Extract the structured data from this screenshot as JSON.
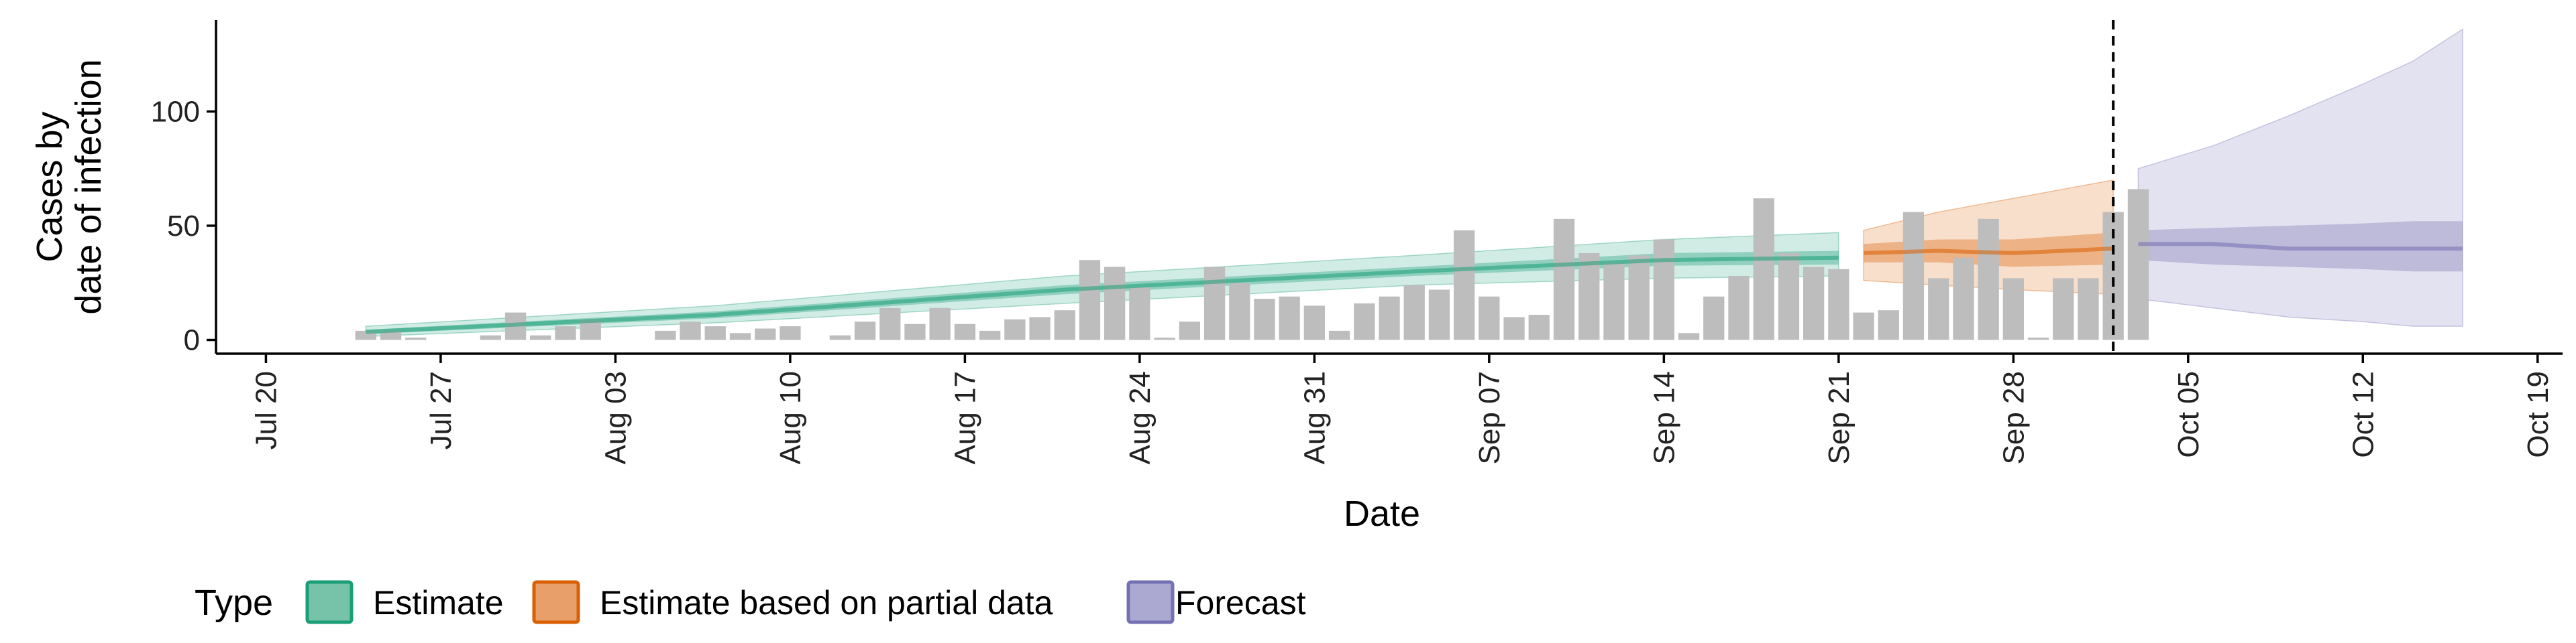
{
  "chart_data": {
    "type": "bar",
    "xlabel": "Date",
    "ylabel_line1": "Cases by",
    "ylabel_line2": "date of infection",
    "x_range": [
      "2020-07-18",
      "2020-10-20"
    ],
    "ylim": [
      -6,
      140
    ],
    "y_ticks": [
      0,
      50,
      100
    ],
    "x_ticks": [
      {
        "date": "2020-07-20",
        "label": "Jul 20"
      },
      {
        "date": "2020-07-27",
        "label": "Jul 27"
      },
      {
        "date": "2020-08-03",
        "label": "Aug 03"
      },
      {
        "date": "2020-08-10",
        "label": "Aug 10"
      },
      {
        "date": "2020-08-17",
        "label": "Aug 17"
      },
      {
        "date": "2020-08-24",
        "label": "Aug 24"
      },
      {
        "date": "2020-08-31",
        "label": "Aug 31"
      },
      {
        "date": "2020-09-07",
        "label": "Sep 07"
      },
      {
        "date": "2020-09-14",
        "label": "Sep 14"
      },
      {
        "date": "2020-09-21",
        "label": "Sep 21"
      },
      {
        "date": "2020-09-28",
        "label": "Sep 28"
      },
      {
        "date": "2020-10-05",
        "label": "Oct 05"
      },
      {
        "date": "2020-10-12",
        "label": "Oct 12"
      },
      {
        "date": "2020-10-19",
        "label": "Oct 19"
      }
    ],
    "grid": false,
    "vline_date": "2020-10-02",
    "bars": {
      "start_date": "2020-07-24",
      "values": [
        4,
        4,
        1,
        0,
        0,
        2,
        12,
        2,
        6,
        9,
        0,
        0,
        4,
        8,
        6,
        3,
        5,
        6,
        0,
        2,
        8,
        14,
        7,
        14,
        7,
        4,
        9,
        10,
        13,
        35,
        32,
        23,
        1,
        8,
        32,
        25,
        18,
        19,
        15,
        4,
        16,
        19,
        24,
        22,
        48,
        19,
        10,
        11,
        53,
        38,
        34,
        37,
        44,
        3,
        19,
        28,
        62,
        38,
        32,
        31,
        12,
        13,
        56,
        27,
        36,
        53,
        27,
        1,
        27,
        27,
        56,
        66
      ],
      "color": "#BDBDBD"
    },
    "bands": [
      {
        "type_index": 0,
        "dates": [
          "2020-07-24",
          "2020-08-07",
          "2020-08-21",
          "2020-09-04",
          "2020-09-14",
          "2020-09-21"
        ],
        "median": [
          3.5,
          11,
          22,
          30,
          35,
          36
        ],
        "inner_lo": [
          2.5,
          9.5,
          20,
          28,
          32.5,
          33
        ],
        "inner_hi": [
          4.5,
          12.5,
          24,
          32,
          38,
          39
        ],
        "outer_lo": [
          1.5,
          7.5,
          16,
          24,
          27,
          28
        ],
        "outer_hi": [
          6,
          15,
          28,
          37,
          44,
          47
        ]
      },
      {
        "type_index": 1,
        "dates": [
          "2020-09-22",
          "2020-09-25",
          "2020-09-28",
          "2020-10-02"
        ],
        "median": [
          38,
          39,
          38,
          40
        ],
        "inner_lo": [
          34,
          34,
          32,
          33
        ],
        "inner_hi": [
          42,
          44,
          44,
          47
        ],
        "outer_lo": [
          26,
          24,
          22,
          20
        ],
        "outer_hi": [
          48,
          56,
          62,
          70
        ]
      },
      {
        "type_index": 2,
        "dates": [
          "2020-10-03",
          "2020-10-06",
          "2020-10-09",
          "2020-10-12",
          "2020-10-14",
          "2020-10-16"
        ],
        "median": [
          42,
          42,
          40,
          40,
          40,
          40
        ],
        "inner_lo": [
          35,
          33,
          32,
          31,
          30,
          30
        ],
        "inner_hi": [
          48,
          49,
          50,
          51,
          52,
          52
        ],
        "outer_lo": [
          18,
          14,
          10,
          8,
          6,
          6
        ],
        "outer_hi": [
          75,
          85,
          98,
          112,
          122,
          136
        ]
      }
    ]
  },
  "legend": {
    "title": "Type",
    "placement": "bottom",
    "items": [
      {
        "label": "Estimate",
        "color": "#1B9E77"
      },
      {
        "label": "Estimate based on partial data",
        "color": "#D95F02"
      },
      {
        "label": "Forecast",
        "color": "#7570B3"
      }
    ]
  }
}
